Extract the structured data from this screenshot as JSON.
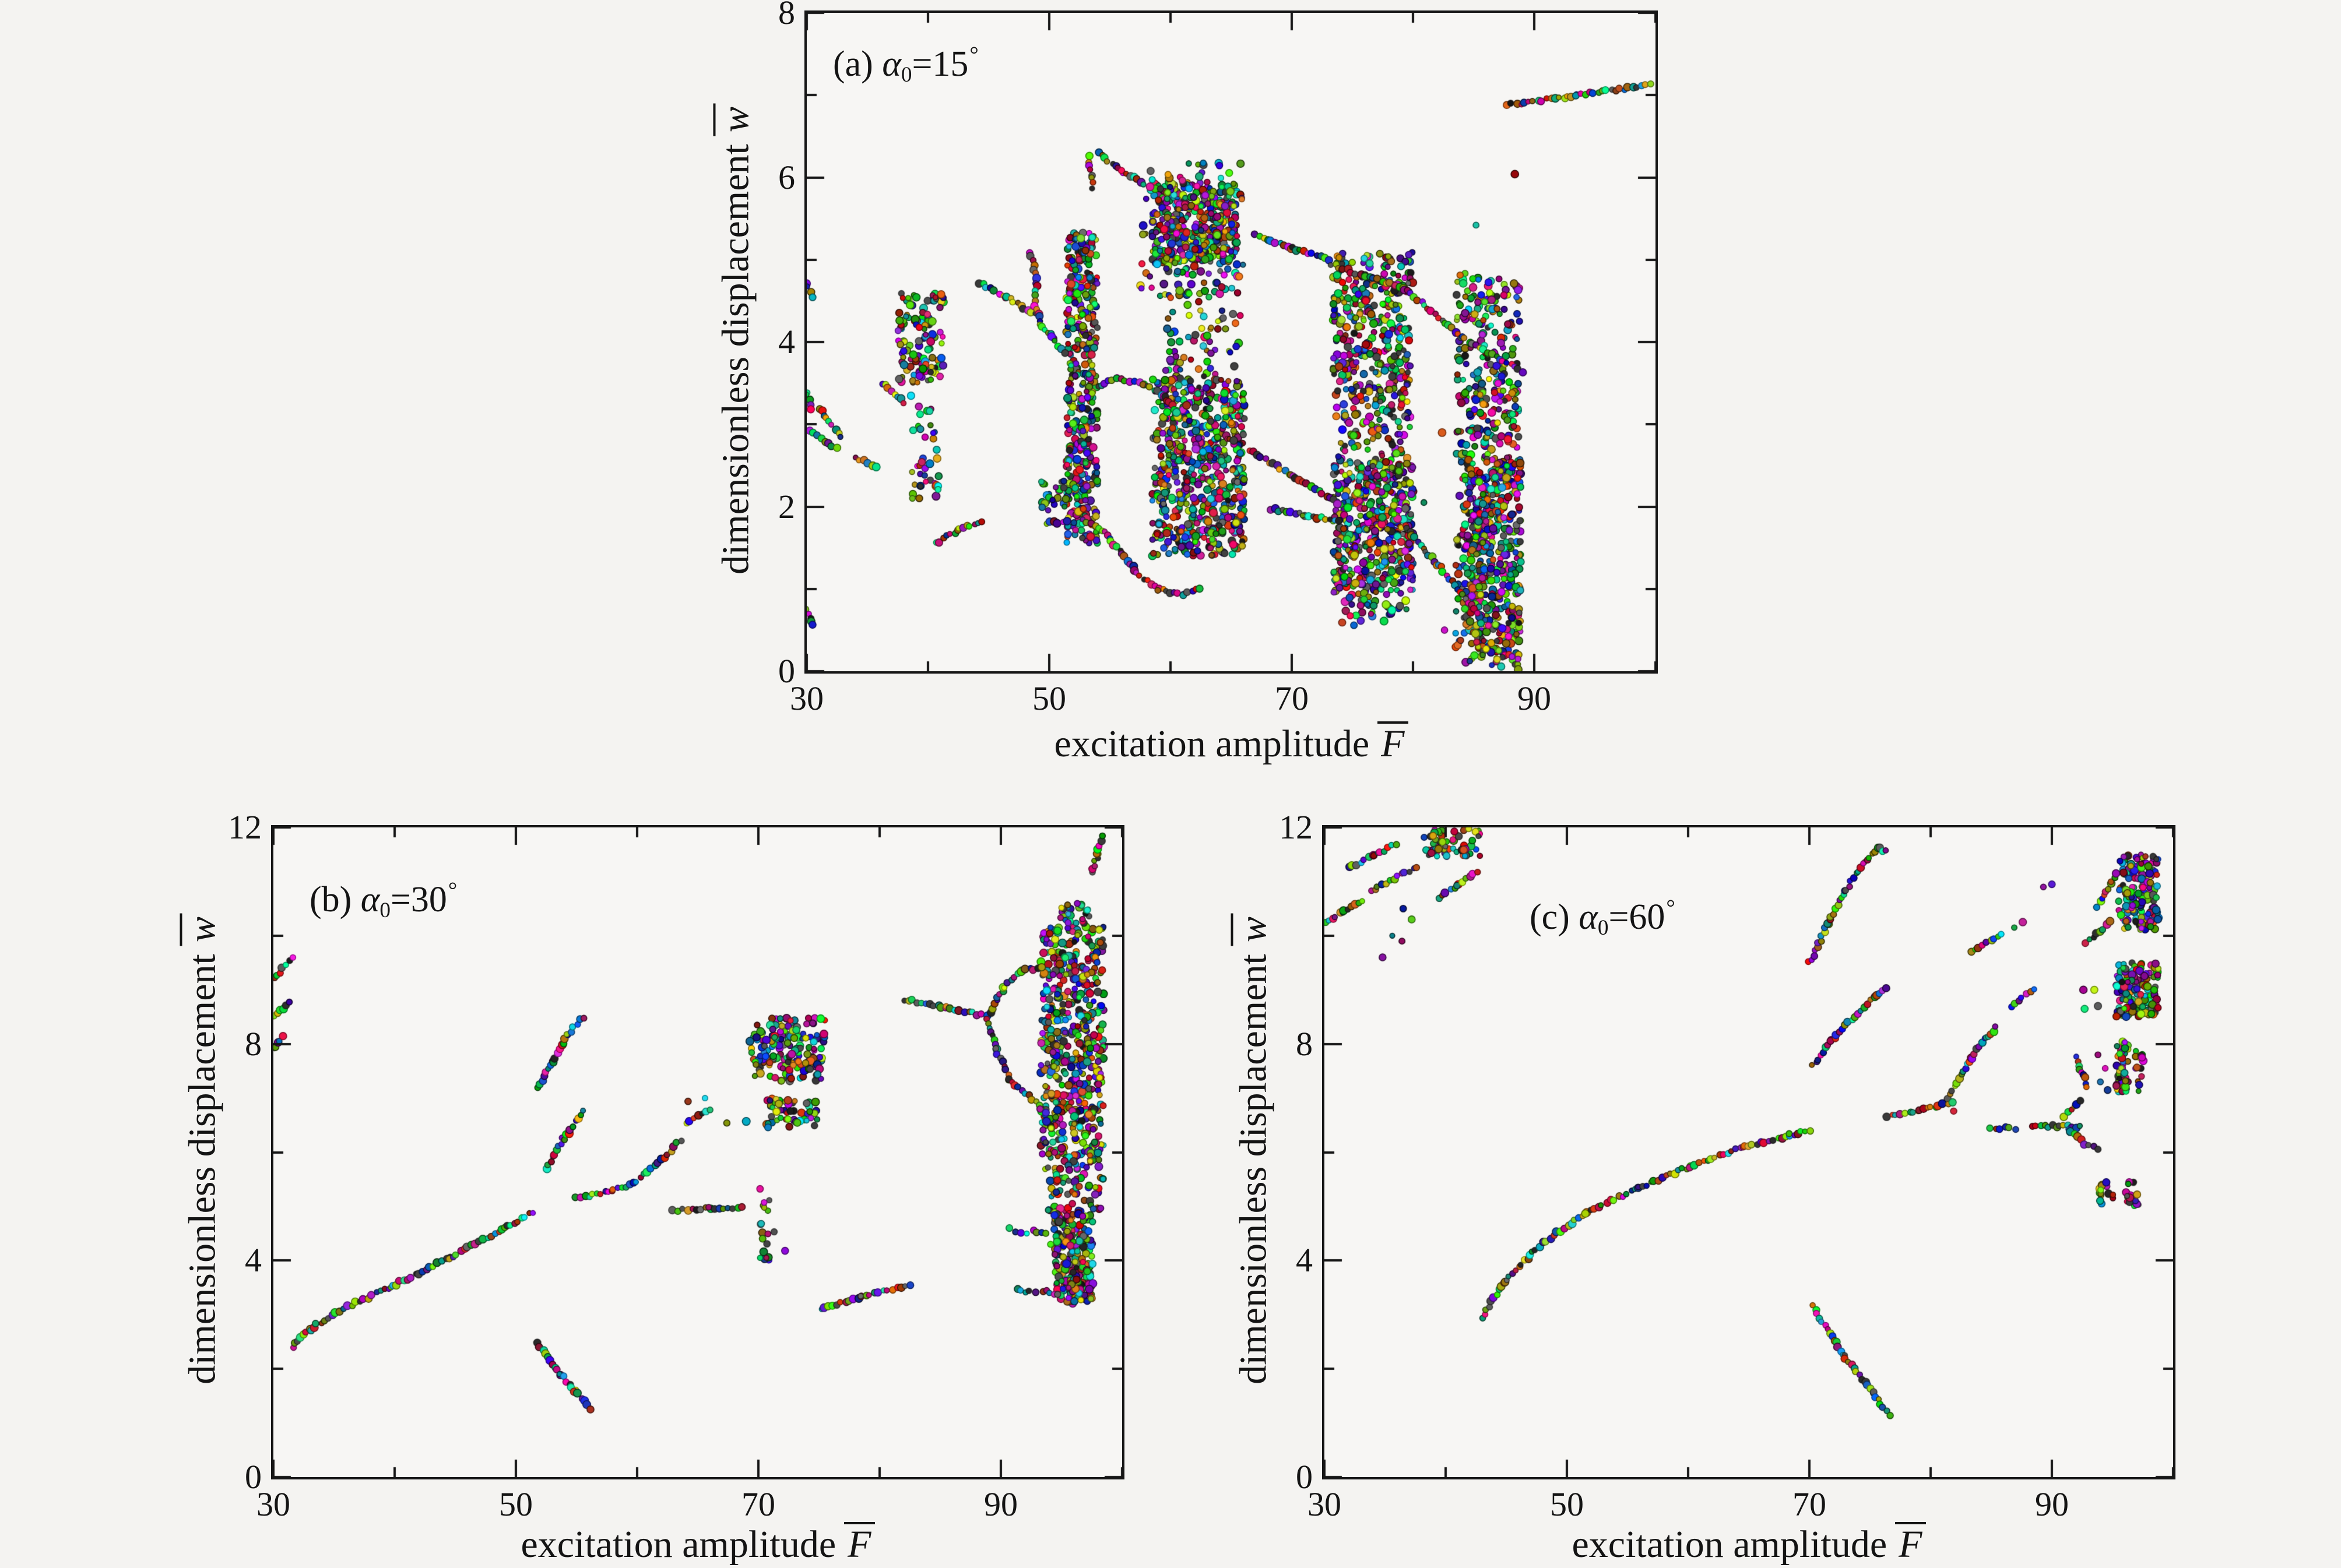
{
  "figure": {
    "background_color": "#f4f3f1",
    "spine_color": "#161616",
    "text_color": "#141414",
    "point_style": "randomly multicolored round markers with dark edges",
    "panel_count": 3
  },
  "chart_data": [
    {
      "type": "scatter",
      "panel": "a",
      "label": {
        "index": "(a)",
        "variable": "α",
        "subscript": "0",
        "value": "=15",
        "degree": "°"
      },
      "xlabel": {
        "text": "excitation amplitude",
        "variable": "F",
        "accent": "overbar"
      },
      "ylabel": {
        "text": "dimensionless displacement",
        "variable": "w",
        "accent": "overbar"
      },
      "xlim": [
        30,
        100
      ],
      "ylim": [
        0,
        8
      ],
      "xticks": [
        30,
        50,
        70,
        90
      ],
      "yticks": [
        0,
        2,
        4,
        6,
        8
      ],
      "x_minor_step": 10,
      "y_minor_step": 1,
      "grid": false,
      "legend": false,
      "branches": [
        [
          [
            30,
            4.72
          ],
          [
            30.4,
            4.55
          ]
        ],
        [
          [
            30,
            3.4
          ],
          [
            30.3,
            3.2
          ]
        ],
        [
          [
            30.2,
            2.92
          ],
          [
            32.4,
            2.7
          ]
        ],
        [
          [
            31,
            3.2
          ],
          [
            32.8,
            2.86
          ]
        ],
        [
          [
            34,
            2.6
          ],
          [
            35.7,
            2.47
          ]
        ],
        [
          [
            36.2,
            3.5
          ],
          [
            38,
            3.27
          ]
        ],
        [
          [
            30,
            0.76
          ],
          [
            30.5,
            0.55
          ]
        ],
        [
          [
            40.7,
            1.55
          ],
          [
            42.5,
            1.72
          ],
          [
            44.5,
            1.82
          ]
        ],
        [
          [
            44.2,
            4.72
          ],
          [
            46.5,
            4.55
          ],
          [
            48.8,
            4.34
          ]
        ],
        [
          [
            48.4,
            5.08
          ],
          [
            49,
            4.78
          ],
          [
            48.8,
            4.5
          ],
          [
            49.3,
            4.2
          ],
          [
            50.3,
            4.05
          ],
          [
            51.3,
            3.88
          ]
        ],
        [
          [
            49.7,
            1.8
          ],
          [
            51.4,
            1.82
          ]
        ],
        [
          [
            53.2,
            6.25
          ],
          [
            53.6,
            5.88
          ]
        ],
        [
          [
            54,
            6.3
          ],
          [
            56,
            6.07
          ],
          [
            58.2,
            5.9
          ]
        ],
        [
          [
            67,
            5.3
          ],
          [
            70,
            5.14
          ],
          [
            73,
            5.0
          ]
        ],
        [
          [
            73.2,
            4.95
          ],
          [
            76,
            4.8
          ],
          [
            79.2,
            4.67
          ]
        ],
        [
          [
            79.3,
            4.65
          ],
          [
            84,
            4.06
          ],
          [
            89,
            3.64
          ]
        ],
        [
          [
            54,
            3.45
          ],
          [
            55.5,
            3.56
          ],
          [
            57.8,
            3.5
          ],
          [
            59.5,
            3.34
          ],
          [
            60.5,
            3.15
          ]
        ],
        [
          [
            52.8,
            1.85
          ],
          [
            54.5,
            1.7
          ],
          [
            56,
            1.42
          ],
          [
            57.5,
            1.15
          ],
          [
            59,
            1.0
          ],
          [
            61,
            0.93
          ],
          [
            62.5,
            1.0
          ]
        ],
        [
          [
            66.5,
            2.68
          ],
          [
            70,
            2.38
          ],
          [
            73.8,
            2.05
          ]
        ],
        [
          [
            68.3,
            1.97
          ],
          [
            71,
            1.9
          ],
          [
            74,
            1.83
          ]
        ],
        [
          [
            79.3,
            1.78
          ],
          [
            82,
            1.3
          ],
          [
            85.3,
            0.72
          ]
        ],
        [
          [
            87.8,
            6.88
          ],
          [
            93.5,
            7.0
          ],
          [
            99.5,
            7.12
          ]
        ]
      ],
      "points": [
        [
          88.4,
          6.04
        ],
        [
          82.4,
          2.9
        ],
        [
          82.6,
          0.5
        ],
        [
          80.9,
          2.05
        ],
        [
          85.2,
          5.42
        ]
      ],
      "clusters": [
        [
          37.5,
          41.3,
          3.5,
          4.6,
          120
        ],
        [
          38.5,
          41,
          2.05,
          3.35,
          40
        ],
        [
          51.4,
          54,
          1.55,
          5.35,
          420
        ],
        [
          49.2,
          51.6,
          1.95,
          2.32,
          26
        ],
        [
          58.5,
          65.5,
          4.95,
          5.95,
          380
        ],
        [
          57.5,
          66,
          4.55,
          6.18,
          110
        ],
        [
          59.5,
          66,
          3.55,
          4.9,
          80
        ],
        [
          58.5,
          66.1,
          1.4,
          3.56,
          650
        ],
        [
          73.4,
          80,
          3.45,
          5.1,
          300
        ],
        [
          73.6,
          79.8,
          2.55,
          3.45,
          120
        ],
        [
          73.4,
          80,
          0.95,
          2.55,
          480
        ],
        [
          74,
          79.5,
          0.55,
          0.95,
          40
        ],
        [
          83.5,
          88.9,
          0.25,
          4.85,
          520
        ],
        [
          84.2,
          88.9,
          0.02,
          2.6,
          300
        ]
      ]
    },
    {
      "type": "scatter",
      "panel": "b",
      "label": {
        "index": "(b)",
        "variable": "α",
        "subscript": "0",
        "value": "=30",
        "degree": "°"
      },
      "xlabel": {
        "text": "excitation amplitude",
        "variable": "F",
        "accent": "overbar"
      },
      "ylabel": {
        "text": "dimensionless displacement",
        "variable": "w",
        "accent": "overbar"
      },
      "xlim": [
        30,
        100
      ],
      "ylim": [
        0,
        12
      ],
      "xticks": [
        30,
        50,
        70,
        90
      ],
      "yticks": [
        0,
        4,
        8,
        12
      ],
      "x_minor_step": 10,
      "y_minor_step": 2,
      "grid": false,
      "legend": false,
      "branches": [
        [
          [
            30,
            9.2
          ],
          [
            31.5,
            9.6
          ]
        ],
        [
          [
            30,
            8.5
          ],
          [
            31.3,
            8.78
          ]
        ],
        [
          [
            30,
            7.9
          ],
          [
            30.8,
            8.12
          ]
        ],
        [
          [
            31.6,
            2.4
          ],
          [
            33,
            2.72
          ],
          [
            35.1,
            3.04
          ],
          [
            39.8,
            3.53
          ],
          [
            44.5,
            4.05
          ],
          [
            49.2,
            4.62
          ],
          [
            51.3,
            4.9
          ]
        ],
        [
          [
            51.8,
            7.2
          ],
          [
            53,
            7.68
          ],
          [
            54.3,
            8.17
          ],
          [
            55.5,
            8.5
          ]
        ],
        [
          [
            52.5,
            5.7
          ],
          [
            53.9,
            6.24
          ],
          [
            55.5,
            6.75
          ]
        ],
        [
          [
            51.8,
            2.47
          ],
          [
            53.6,
            1.9
          ],
          [
            54.9,
            1.6
          ],
          [
            56.2,
            1.27
          ]
        ],
        [
          [
            55,
            5.15
          ],
          [
            58,
            5.3
          ],
          [
            59.8,
            5.42
          ]
        ],
        [
          [
            60.3,
            5.55
          ],
          [
            62,
            5.85
          ],
          [
            63.6,
            6.22
          ]
        ],
        [
          [
            64.1,
            6.55
          ],
          [
            65.9,
            6.8
          ]
        ],
        [
          [
            63,
            4.92
          ],
          [
            66,
            4.96
          ],
          [
            68.7,
            4.98
          ]
        ],
        [
          [
            75.2,
            3.1
          ],
          [
            78.5,
            3.35
          ],
          [
            82.5,
            3.55
          ]
        ],
        [
          [
            82,
            8.82
          ],
          [
            85.5,
            8.68
          ],
          [
            88.8,
            8.52
          ]
        ],
        [
          [
            88.9,
            8.52
          ],
          [
            90.3,
            9.05
          ],
          [
            91.7,
            9.35
          ],
          [
            93.3,
            9.42
          ]
        ],
        [
          [
            88.9,
            8.45
          ],
          [
            89.6,
            7.9
          ],
          [
            90.7,
            7.35
          ],
          [
            92.3,
            7.05
          ],
          [
            93.6,
            6.75
          ]
        ],
        [
          [
            97.5,
            11.15
          ],
          [
            98,
            11.5
          ],
          [
            98.3,
            11.85
          ]
        ],
        [
          [
            91.3,
            4.55
          ],
          [
            92.1,
            4.5
          ]
        ],
        [
          [
            92.6,
            4.55
          ],
          [
            93.7,
            4.5
          ]
        ],
        [
          [
            91.3,
            3.45
          ],
          [
            92.8,
            3.42
          ]
        ],
        [
          [
            93.4,
            3.44
          ],
          [
            94.7,
            3.38
          ]
        ]
      ],
      "points": [
        [
          64.2,
          6.94
        ],
        [
          65.6,
          7.0
        ],
        [
          67.4,
          6.54
        ],
        [
          71.3,
          4.53
        ],
        [
          72.2,
          4.18
        ],
        [
          90.7,
          4.6
        ],
        [
          94.1,
          4.3
        ],
        [
          69.3,
          8.05
        ],
        [
          69.8,
          7.62
        ],
        [
          69.0,
          6.57
        ],
        [
          59.9,
          5.45
        ]
      ],
      "clusters": [
        [
          69.4,
          75.5,
          7.3,
          8.5,
          170
        ],
        [
          70.4,
          75,
          6.45,
          7.0,
          55
        ],
        [
          69.8,
          70.9,
          3.85,
          5.45,
          18
        ],
        [
          93.3,
          98.5,
          5.5,
          10.2,
          560
        ],
        [
          94.9,
          97.3,
          10.2,
          10.6,
          30
        ],
        [
          93.8,
          98.3,
          4.9,
          5.5,
          45
        ],
        [
          94.4,
          97.6,
          3.2,
          4.9,
          230
        ]
      ]
    },
    {
      "type": "scatter",
      "panel": "c",
      "label": {
        "index": "(c)",
        "variable": "α",
        "subscript": "0",
        "value": "=60",
        "degree": "°"
      },
      "xlabel": {
        "text": "excitation amplitude",
        "variable": "F",
        "accent": "overbar"
      },
      "ylabel": {
        "text": "dimensionless displacement",
        "variable": "w",
        "accent": "overbar"
      },
      "xlim": [
        30,
        100
      ],
      "ylim": [
        0,
        12
      ],
      "xticks": [
        30,
        50,
        70,
        90
      ],
      "yticks": [
        0,
        4,
        8,
        12
      ],
      "x_minor_step": 10,
      "y_minor_step": 2,
      "grid": false,
      "legend": false,
      "branches": [
        [
          [
            30,
            10.25
          ],
          [
            31.6,
            10.45
          ],
          [
            33.2,
            10.65
          ]
        ],
        [
          [
            32,
            11.25
          ],
          [
            34,
            11.48
          ],
          [
            35.9,
            11.68
          ]
        ],
        [
          [
            33.8,
            10.82
          ],
          [
            35.7,
            11.05
          ],
          [
            37.6,
            11.28
          ]
        ],
        [
          [
            39.4,
            10.7
          ],
          [
            41,
            10.95
          ],
          [
            42.6,
            11.2
          ]
        ],
        [
          [
            43,
            2.95
          ],
          [
            44.8,
            3.6
          ],
          [
            47.7,
            4.27
          ],
          [
            51.6,
            4.89
          ],
          [
            55.9,
            5.34
          ],
          [
            60.2,
            5.74
          ],
          [
            64.6,
            6.1
          ],
          [
            68.4,
            6.32
          ],
          [
            70,
            6.4
          ]
        ],
        [
          [
            70.3,
            3.15
          ],
          [
            72.8,
            2.27
          ],
          [
            75.2,
            1.55
          ],
          [
            76.6,
            1.15
          ]
        ],
        [
          [
            70,
            9.5
          ],
          [
            71.5,
            10.2
          ],
          [
            73,
            10.85
          ],
          [
            74.5,
            11.35
          ],
          [
            75.7,
            11.62
          ],
          [
            76.4,
            11.55
          ]
        ],
        [
          [
            70.3,
            7.6
          ],
          [
            71.8,
            8.05
          ],
          [
            73.5,
            8.45
          ],
          [
            75.3,
            8.85
          ],
          [
            76.3,
            9.05
          ]
        ],
        [
          [
            81.3,
            7.0
          ],
          [
            82.4,
            7.35
          ],
          [
            83.4,
            7.75
          ],
          [
            84.5,
            8.1
          ],
          [
            85.4,
            8.3
          ]
        ],
        [
          [
            86.6,
            8.7
          ],
          [
            88.5,
            9.0
          ]
        ],
        [
          [
            76.4,
            6.65
          ],
          [
            79,
            6.78
          ],
          [
            81.7,
            6.93
          ]
        ],
        [
          [
            85,
            6.46
          ],
          [
            86.9,
            6.44
          ]
        ],
        [
          [
            88.3,
            6.5
          ],
          [
            90.5,
            6.48
          ],
          [
            92.3,
            6.47
          ]
        ],
        [
          [
            90.95,
            6.68
          ],
          [
            92.4,
            6.93
          ]
        ],
        [
          [
            91.3,
            6.45
          ],
          [
            92.7,
            6.15
          ],
          [
            93.9,
            6.07
          ]
        ],
        [
          [
            91.9,
            7.75
          ],
          [
            92.5,
            7.45
          ],
          [
            92.9,
            7.2
          ]
        ],
        [
          [
            83.4,
            9.7
          ],
          [
            85.9,
            10.05
          ]
        ],
        [
          [
            92.8,
            9.85
          ],
          [
            94.8,
            10.25
          ]
        ],
        [
          [
            93.8,
            10.55
          ],
          [
            95.3,
            11.15
          ]
        ]
      ],
      "points": [
        [
          36.5,
          10.5
        ],
        [
          37.2,
          10.3
        ],
        [
          35.6,
          10.0
        ],
        [
          36.4,
          9.9
        ],
        [
          34.8,
          9.6
        ],
        [
          86.9,
          10.15
        ],
        [
          87.6,
          10.25
        ],
        [
          89.3,
          10.9
        ],
        [
          90,
          10.95
        ],
        [
          92.6,
          9.0
        ],
        [
          93.5,
          9.0
        ],
        [
          92.7,
          8.65
        ],
        [
          93.8,
          8.7
        ],
        [
          93.8,
          7.8
        ],
        [
          94.4,
          7.55
        ],
        [
          94,
          7.3
        ],
        [
          94.6,
          7.15
        ],
        [
          81.9,
          6.76
        ]
      ],
      "clusters": [
        [
          38.2,
          43,
          11.45,
          12,
          60
        ],
        [
          95.5,
          98.8,
          10.1,
          11.5,
          150
        ],
        [
          95.3,
          98.8,
          8.5,
          9.5,
          140
        ],
        [
          95.3,
          96.3,
          7.1,
          8.05,
          55
        ],
        [
          96.9,
          97.7,
          7.1,
          7.9,
          14
        ],
        [
          93.9,
          95.1,
          5.05,
          5.45,
          16
        ],
        [
          96.1,
          97.3,
          5.0,
          5.45,
          16
        ]
      ]
    }
  ]
}
